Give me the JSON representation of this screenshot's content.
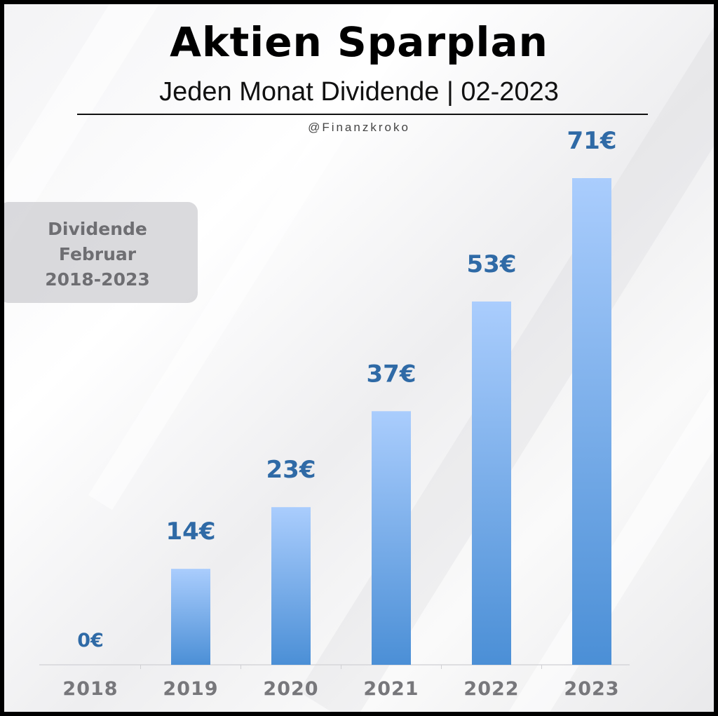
{
  "header": {
    "title": "Aktien Sparplan",
    "subtitle": "Jeden Monat Dividende | 02-2023",
    "handle": "@Finanzkroko"
  },
  "info_box": {
    "line1": "Dividende",
    "line2": "Februar",
    "line3": "2018-2023"
  },
  "chart_data": {
    "type": "bar",
    "categories": [
      "2018",
      "2019",
      "2020",
      "2021",
      "2022",
      "2023"
    ],
    "values": [
      0,
      14,
      23,
      37,
      53,
      71
    ],
    "value_labels": [
      "0€",
      "14€",
      "23€",
      "37€",
      "53€",
      "71€"
    ],
    "title": "Aktien Sparplan",
    "subtitle": "Jeden Monat Dividende | 02-2023",
    "xlabel": "",
    "ylabel": "",
    "unit": "€",
    "ylim": [
      0,
      71
    ],
    "grid": false,
    "legend": "none",
    "colors": {
      "bar_top": "#aacdfd",
      "bar_bottom": "#4b8fd6",
      "label": "#2f6aa6",
      "tick": "#77777b"
    }
  }
}
